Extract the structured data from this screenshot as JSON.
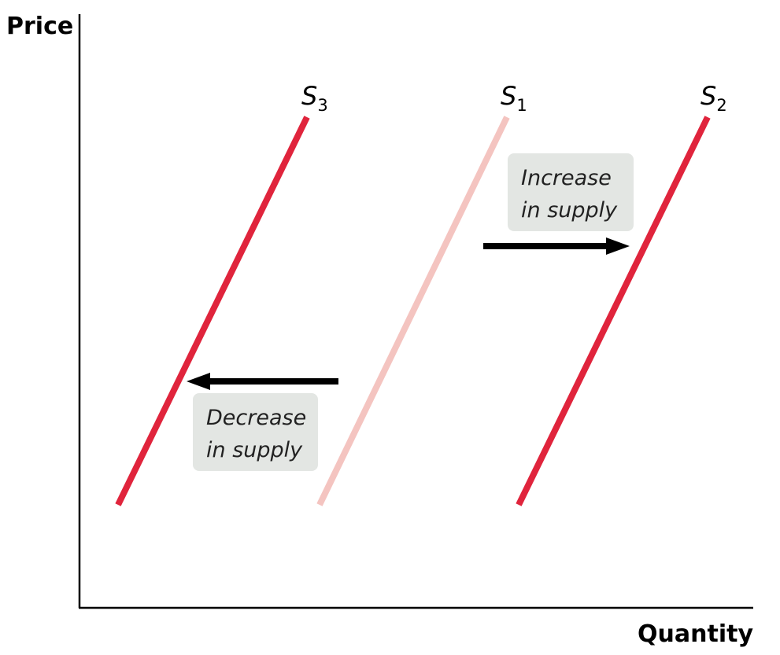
{
  "axes": {
    "y_label": "Price",
    "x_label": "Quantity"
  },
  "curves": {
    "s1": {
      "letter": "S",
      "subscript": "1",
      "color": "#f4c4c0"
    },
    "s2": {
      "letter": "S",
      "subscript": "2",
      "color": "#e0243c"
    },
    "s3": {
      "letter": "S",
      "subscript": "3",
      "color": "#e0243c"
    }
  },
  "annotations": {
    "increase": {
      "line1": "Increase",
      "line2": "in supply"
    },
    "decrease": {
      "line1": "Decrease",
      "line2": "in supply"
    }
  },
  "colors": {
    "axis": "#000000",
    "arrow": "#000000",
    "note_box": "#e3e6e3"
  }
}
